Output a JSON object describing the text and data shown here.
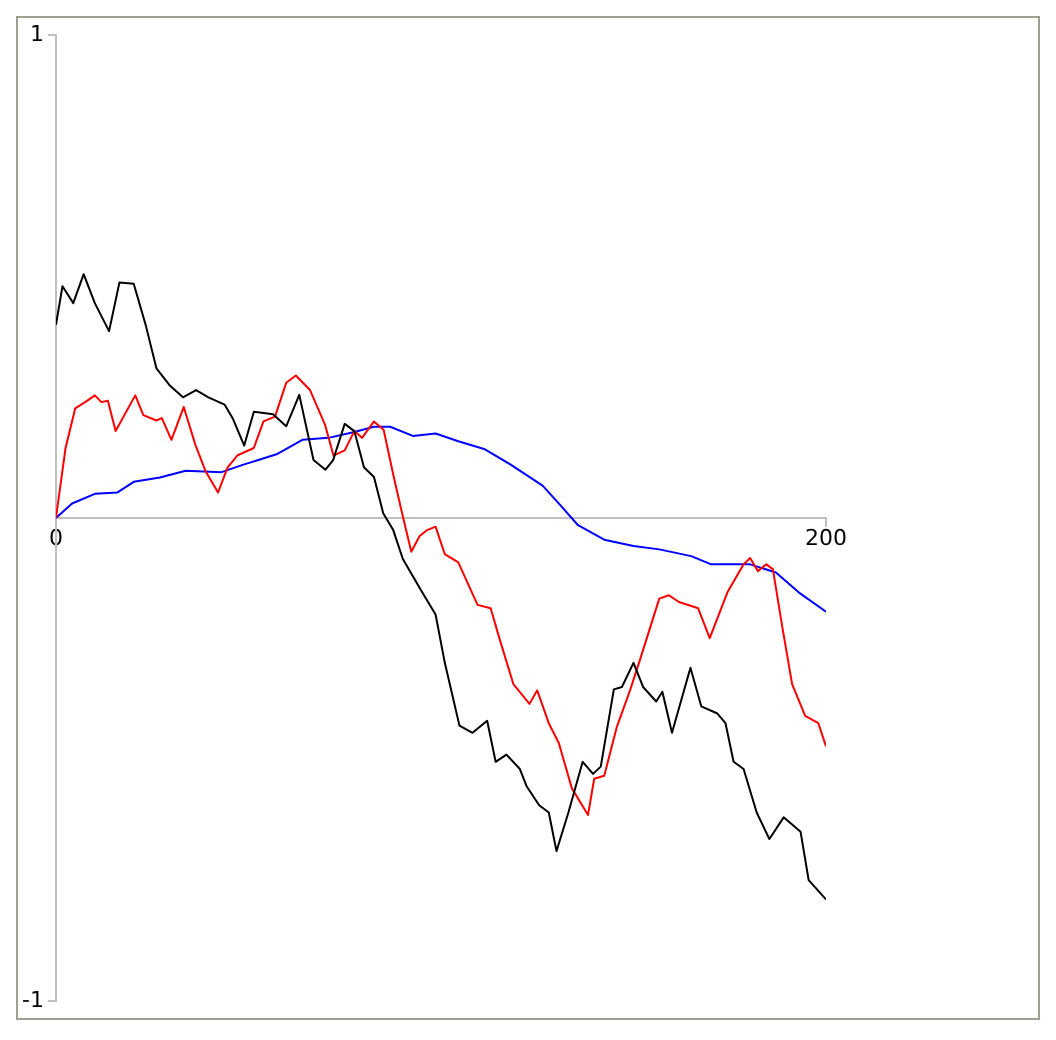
{
  "chart_data": {
    "type": "line",
    "xlim": [
      0,
      200
    ],
    "ylim": [
      -1,
      1
    ],
    "xticks": [
      0,
      200
    ],
    "yticks": [
      -1,
      1
    ],
    "grid": false,
    "legend": false,
    "marker": "none",
    "line_style": "solid",
    "series": [
      {
        "color": "#000000",
        "x": [
          0,
          1.7,
          4.5,
          7.2,
          10.1,
          13.8,
          16.5,
          20.2,
          23.3,
          26.1,
          29.5,
          33,
          36.4,
          39.6,
          43.8,
          46,
          48.9,
          51.4,
          56.4,
          59.8,
          63.2,
          66.9,
          70,
          72,
          75,
          77.5,
          80,
          82.6,
          85,
          87.6,
          90.1,
          95.2,
          98.6,
          101,
          104.8,
          108.2,
          112,
          114.2,
          117,
          120.5,
          122.2,
          125.5,
          128,
          130,
          133.1,
          136.8,
          139.5,
          141.5,
          144.9,
          147,
          150,
          152.5,
          155.9,
          157.5,
          160,
          164.8,
          167.6,
          171.8,
          173.9,
          176,
          178.6,
          182,
          185.3,
          189,
          193.4,
          195.5,
          200
        ],
        "values": [
          0.4,
          0.48,
          0.445,
          0.505,
          0.445,
          0.387,
          0.488,
          0.485,
          0.4,
          0.31,
          0.275,
          0.25,
          0.265,
          0.25,
          0.235,
          0.205,
          0.15,
          0.22,
          0.215,
          0.19,
          0.255,
          0.12,
          0.1,
          0.12,
          0.195,
          0.18,
          0.105,
          0.085,
          0.01,
          -0.025,
          -0.085,
          -0.155,
          -0.2,
          -0.3,
          -0.43,
          -0.445,
          -0.42,
          -0.505,
          -0.49,
          -0.52,
          -0.555,
          -0.595,
          -0.61,
          -0.69,
          -0.61,
          -0.505,
          -0.53,
          -0.515,
          -0.355,
          -0.35,
          -0.3,
          -0.35,
          -0.38,
          -0.36,
          -0.445,
          -0.31,
          -0.39,
          -0.405,
          -0.425,
          -0.505,
          -0.52,
          -0.61,
          -0.665,
          -0.62,
          -0.65,
          -0.75,
          -0.79
        ]
      },
      {
        "color": "#ff0000",
        "x": [
          0,
          2.5,
          5,
          7.6,
          10.1,
          11.8,
          13.5,
          15.5,
          20.6,
          22.7,
          26.1,
          27.5,
          30,
          33.2,
          36.2,
          38.8,
          42.1,
          44.6,
          47.2,
          51.4,
          53.9,
          56.9,
          59.8,
          62.3,
          66,
          69.9,
          72.1,
          75,
          77.5,
          79.5,
          82.6,
          85.1,
          87.6,
          90.1,
          92.3,
          94.4,
          96.4,
          98.6,
          101,
          104.5,
          109.5,
          112.9,
          115.4,
          118.8,
          123,
          125,
          128,
          130.6,
          134,
          138.2,
          139.8,
          142.4,
          145.7,
          149.1,
          151.6,
          156.7,
          159.2,
          161.8,
          166.8,
          169.8,
          174.4,
          178.6,
          180.3,
          182.3,
          184.5,
          186.2,
          188.7,
          191.2,
          194.6,
          198,
          200
        ],
        "values": [
          0,
          0.145,
          0.227,
          0.24,
          0.254,
          0.24,
          0.243,
          0.18,
          0.254,
          0.213,
          0.202,
          0.207,
          0.162,
          0.23,
          0.152,
          0.098,
          0.053,
          0.105,
          0.13,
          0.145,
          0.2,
          0.21,
          0.28,
          0.295,
          0.265,
          0.193,
          0.129,
          0.14,
          0.18,
          0.166,
          0.2,
          0.183,
          0.09,
          0.003,
          -0.07,
          -0.038,
          -0.025,
          -0.018,
          -0.075,
          -0.092,
          -0.18,
          -0.187,
          -0.255,
          -0.344,
          -0.385,
          -0.357,
          -0.425,
          -0.466,
          -0.56,
          -0.615,
          -0.54,
          -0.534,
          -0.432,
          -0.357,
          -0.296,
          -0.167,
          -0.16,
          -0.174,
          -0.187,
          -0.249,
          -0.154,
          -0.096,
          -0.083,
          -0.11,
          -0.096,
          -0.106,
          -0.228,
          -0.344,
          -0.41,
          -0.425,
          -0.473
        ]
      },
      {
        "color": "#0000ff",
        "x": [
          0,
          4.2,
          10.1,
          16,
          20.2,
          27,
          33.7,
          43,
          48.9,
          57.3,
          64,
          70.8,
          77.5,
          82.6,
          86.8,
          92.7,
          98.6,
          104.5,
          111.2,
          118,
          126.4,
          131.4,
          135.6,
          142.4,
          150,
          156.7,
          165,
          170.2,
          180.3,
          187,
          192.9,
          200
        ],
        "values": [
          0,
          0.03,
          0.05,
          0.053,
          0.075,
          0.084,
          0.098,
          0.095,
          0.111,
          0.132,
          0.162,
          0.166,
          0.178,
          0.189,
          0.189,
          0.17,
          0.175,
          0.159,
          0.143,
          0.111,
          0.067,
          0.023,
          -0.015,
          -0.045,
          -0.058,
          -0.065,
          -0.079,
          -0.096,
          -0.096,
          -0.113,
          -0.154,
          -0.194
        ]
      }
    ]
  }
}
